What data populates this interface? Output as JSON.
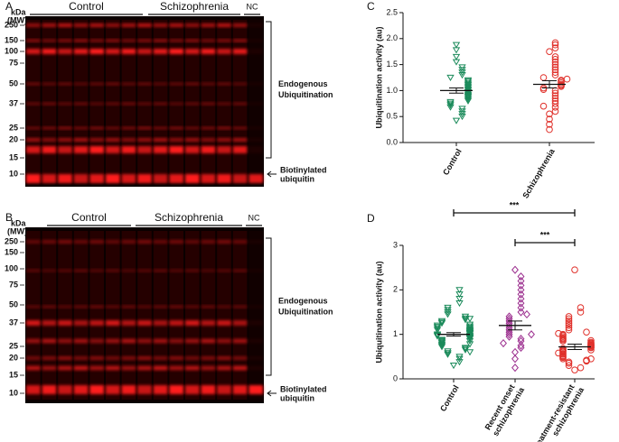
{
  "panel_labels": [
    "A",
    "B",
    "C",
    "D"
  ],
  "blots": [
    {
      "unit": [
        "kDa",
        "(MW)"
      ],
      "markers": [
        "250",
        "150",
        "100",
        "75",
        "50",
        "37",
        "25",
        "20",
        "15",
        "10"
      ],
      "groups": [
        "Control",
        "Schizophrenia",
        "NC"
      ],
      "bracket_label": [
        "Endogenous",
        "Ubiquitination"
      ],
      "arrow_label": [
        "Biotinylated",
        "ubiquitin"
      ]
    },
    {
      "unit": [
        "kDa",
        "(MW)"
      ],
      "markers": [
        "250",
        "150",
        "100",
        "75",
        "50",
        "37",
        "25",
        "20",
        "15",
        "10"
      ],
      "groups": [
        "Control",
        "Schizophrenia",
        "NC"
      ],
      "bracket_label": [
        "Endogenous",
        "Ubiquitination"
      ],
      "arrow_label": [
        "Biotinylated",
        "ubiquitin"
      ]
    }
  ],
  "chart_data": [
    {
      "type": "strip",
      "ylabel": "Ubiquitination activity (au)",
      "categories": [
        "Control",
        "Schizophrenia"
      ],
      "ylim": [
        0,
        2.5
      ],
      "yticks": [
        {
          "value": 0,
          "label": "0.0"
        },
        {
          "value": 0.5,
          "label": "0.5"
        },
        {
          "value": 1,
          "label": "1.0"
        },
        {
          "value": 1.5,
          "label": "1.5"
        },
        {
          "value": 2,
          "label": "2.0"
        },
        {
          "value": 2.5,
          "label": "2.5"
        }
      ],
      "series": [
        {
          "name": "Control",
          "color": "#1a8a5a",
          "marker": "triangle-down",
          "mean": 1.0,
          "sem": 0.05,
          "values": [
            0.42,
            0.5,
            0.55,
            0.6,
            0.65,
            0.68,
            0.72,
            0.75,
            0.78,
            0.8,
            0.83,
            0.86,
            0.88,
            0.9,
            0.92,
            0.95,
            0.97,
            1.0,
            1.02,
            1.05,
            1.07,
            1.1,
            1.12,
            1.15,
            1.18,
            1.2,
            1.25,
            1.3,
            1.35,
            1.4,
            1.45,
            1.55,
            1.65,
            1.78,
            1.88
          ]
        },
        {
          "name": "Schizophrenia",
          "color": "#e0302a",
          "marker": "circle",
          "mean": 1.12,
          "sem": 0.07,
          "values": [
            0.25,
            0.35,
            0.45,
            0.55,
            0.6,
            0.68,
            0.75,
            0.8,
            0.85,
            0.9,
            0.95,
            1.0,
            1.02,
            1.05,
            1.08,
            1.1,
            1.12,
            1.15,
            1.18,
            1.2,
            1.25,
            1.3,
            1.35,
            1.4,
            1.45,
            1.5,
            1.55,
            1.6,
            1.65,
            1.75,
            1.82,
            1.88,
            1.92,
            0.7,
            1.22
          ]
        }
      ]
    },
    {
      "type": "strip",
      "ylabel": "Ubiquitination activity (au)",
      "categories": [
        "Control",
        "Recent onset schizophrenia",
        "Treatment-resistant schizophrenia"
      ],
      "ylim": [
        0,
        3
      ],
      "yticks": [
        0,
        1,
        2,
        3
      ],
      "annotations": [
        {
          "text": "***",
          "between": [
            "Control",
            "Treatment-resistant schizophrenia"
          ]
        },
        {
          "text": "***",
          "between": [
            "Recent onset schizophrenia",
            "Treatment-resistant schizophrenia"
          ]
        }
      ],
      "series": [
        {
          "name": "Control",
          "color": "#1a8a5a",
          "marker": "triangle-down",
          "mean": 1.0,
          "sem": 0.04,
          "values": [
            0.3,
            0.38,
            0.45,
            0.5,
            0.55,
            0.58,
            0.62,
            0.65,
            0.68,
            0.7,
            0.72,
            0.75,
            0.77,
            0.8,
            0.82,
            0.84,
            0.86,
            0.88,
            0.9,
            0.92,
            0.93,
            0.95,
            0.96,
            0.98,
            1.0,
            1.0,
            1.02,
            1.03,
            1.05,
            1.06,
            1.08,
            1.1,
            1.1,
            1.12,
            1.14,
            1.15,
            1.17,
            1.2,
            1.22,
            1.25,
            1.27,
            1.3,
            1.33,
            1.36,
            1.4,
            1.45,
            1.5,
            1.55,
            1.6,
            1.7,
            1.8,
            1.9,
            2.0,
            0.85,
            0.97,
            1.07,
            0.78,
            1.18,
            0.6,
            1.35
          ]
        },
        {
          "name": "Recent onset schizophrenia",
          "color": "#9b2d8e",
          "marker": "diamond",
          "mean": 1.2,
          "sem": 0.1,
          "values": [
            0.25,
            0.45,
            0.6,
            0.7,
            0.75,
            0.85,
            0.9,
            0.95,
            1.0,
            1.05,
            1.1,
            1.15,
            1.2,
            1.25,
            1.3,
            1.35,
            1.4,
            1.5,
            1.6,
            1.7,
            1.8,
            1.9,
            2.0,
            2.1,
            2.2,
            2.3,
            2.45,
            0.8,
            1.0,
            1.45
          ]
        },
        {
          "name": "Treatment-resistant schizophrenia",
          "color": "#e0302a",
          "marker": "circle",
          "mean": 0.72,
          "sem": 0.06,
          "values": [
            0.2,
            0.25,
            0.3,
            0.35,
            0.38,
            0.4,
            0.42,
            0.45,
            0.48,
            0.5,
            0.52,
            0.55,
            0.57,
            0.6,
            0.62,
            0.64,
            0.66,
            0.68,
            0.7,
            0.72,
            0.74,
            0.76,
            0.78,
            0.8,
            0.82,
            0.85,
            0.88,
            0.9,
            0.92,
            0.95,
            0.98,
            1.0,
            1.05,
            1.1,
            1.15,
            1.2,
            1.25,
            1.3,
            1.35,
            1.4,
            1.5,
            1.6,
            2.45,
            0.58,
            0.65,
            0.75,
            0.86,
            0.45,
            1.02,
            0.7
          ]
        }
      ]
    }
  ]
}
